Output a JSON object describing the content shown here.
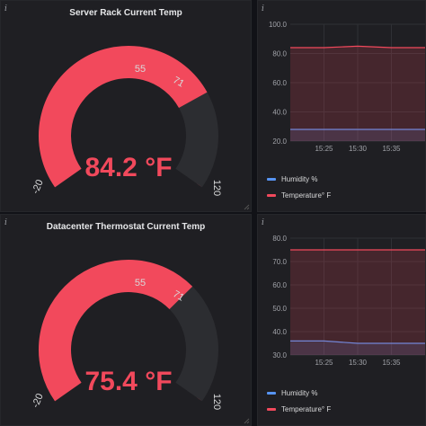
{
  "panels": [
    {
      "title": "Server Rack Current Temp",
      "gauge": {
        "value": 84.2,
        "unit": "°F",
        "display": "84.2 °F",
        "min": -20,
        "max": 120,
        "thresholds": [
          55,
          71
        ],
        "labels": [
          "-20",
          "55",
          "71",
          "120"
        ]
      }
    },
    {
      "title": "",
      "chart": {
        "y_ticks": [
          "100.0",
          "80.0",
          "60.0",
          "40.0",
          "20.0"
        ],
        "x_ticks": [
          "15:25",
          "15:30",
          "15:35"
        ],
        "legend": [
          "Humidity %",
          "Temperature° F"
        ]
      }
    },
    {
      "title": "Datacenter Thermostat Current Temp",
      "gauge": {
        "value": 75.4,
        "unit": "°F",
        "display": "75.4 °F",
        "min": -20,
        "max": 120,
        "thresholds": [
          55,
          71
        ],
        "labels": [
          "-20",
          "55",
          "71",
          "120"
        ]
      }
    },
    {
      "title": "",
      "chart": {
        "y_ticks": [
          "80.0",
          "70.0",
          "60.0",
          "50.0",
          "40.0",
          "30.0"
        ],
        "x_ticks": [
          "15:25",
          "15:30",
          "15:35"
        ],
        "legend": [
          "Humidity %",
          "Temperature° F"
        ]
      }
    }
  ],
  "info_icon": "i",
  "colors": {
    "blue": "#5794f2",
    "green": "#73bf69",
    "red": "#f2495c",
    "track": "#2c2d31"
  },
  "chart_data": [
    {
      "type": "line",
      "x": [
        "15:22",
        "15:25",
        "15:30",
        "15:35",
        "15:36"
      ],
      "series": [
        {
          "name": "Humidity %",
          "values": [
            28,
            28,
            28,
            28,
            28
          ]
        },
        {
          "name": "Temperature° F",
          "values": [
            84,
            84,
            85,
            84,
            84
          ]
        }
      ],
      "ylim": [
        20,
        100
      ],
      "grid": true,
      "legend_position": "bottom"
    },
    {
      "type": "line",
      "x": [
        "15:22",
        "15:25",
        "15:30",
        "15:35",
        "15:36"
      ],
      "series": [
        {
          "name": "Humidity %",
          "values": [
            36,
            36,
            35,
            35,
            35
          ]
        },
        {
          "name": "Temperature° F",
          "values": [
            75,
            75,
            75,
            75,
            75
          ]
        }
      ],
      "ylim": [
        30,
        80
      ],
      "grid": true,
      "legend_position": "bottom"
    }
  ]
}
